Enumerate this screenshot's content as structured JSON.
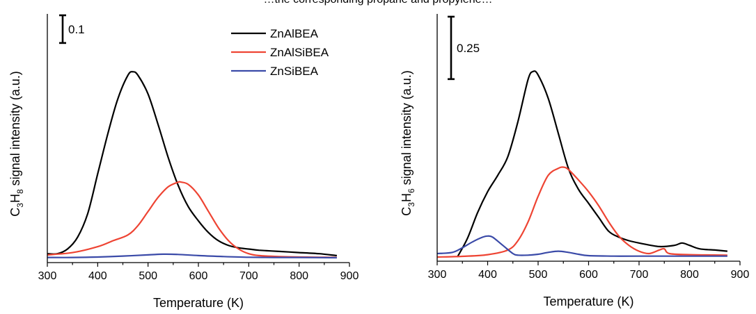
{
  "top_caption_fragment": "…the corresponding propane and propylene…",
  "legend": [
    {
      "label": "ZnAlBEA",
      "color": "#000000"
    },
    {
      "label": "ZnAlSiBEA",
      "color": "#ee4433"
    },
    {
      "label": "ZnSiBEA",
      "color": "#3a4aa8"
    }
  ],
  "chart_data": [
    {
      "type": "line",
      "xlabel": "Temperature (K)",
      "ylabel_parts": [
        "C",
        "3",
        "H",
        "8",
        " signal intensity (a.u.)"
      ],
      "xlim": [
        300,
        900
      ],
      "xticks": [
        "300",
        "400",
        "500",
        "600",
        "700",
        "800",
        "900"
      ],
      "ylim": [
        0,
        1.0
      ],
      "scale_bar": {
        "label": "0.1",
        "value": 0.1
      },
      "series": [
        {
          "name": "ZnAlBEA",
          "color": "#000000",
          "x": [
            300,
            320,
            340,
            360,
            380,
            400,
            420,
            440,
            460,
            470,
            480,
            500,
            520,
            540,
            560,
            580,
            600,
            620,
            640,
            660,
            680,
            700,
            720,
            760,
            800,
            840,
            875
          ],
          "y": [
            0.02,
            0.02,
            0.04,
            0.09,
            0.19,
            0.36,
            0.53,
            0.68,
            0.78,
            0.795,
            0.78,
            0.7,
            0.57,
            0.43,
            0.31,
            0.22,
            0.16,
            0.11,
            0.075,
            0.055,
            0.045,
            0.04,
            0.035,
            0.03,
            0.025,
            0.02,
            0.012
          ]
        },
        {
          "name": "ZnAlSiBEA",
          "color": "#ee4433",
          "x": [
            300,
            350,
            400,
            430,
            460,
            480,
            500,
            520,
            540,
            560,
            565,
            580,
            600,
            620,
            640,
            660,
            680,
            700,
            720,
            760,
            800,
            840,
            875
          ],
          "y": [
            0.015,
            0.025,
            0.05,
            0.075,
            0.1,
            0.14,
            0.2,
            0.26,
            0.305,
            0.325,
            0.325,
            0.315,
            0.27,
            0.2,
            0.13,
            0.075,
            0.04,
            0.02,
            0.012,
            0.008,
            0.006,
            0.005,
            0.004
          ]
        },
        {
          "name": "ZnSiBEA",
          "color": "#3a4aa8",
          "x": [
            300,
            350,
            400,
            450,
            500,
            530,
            560,
            600,
            650,
            700,
            750,
            800,
            875
          ],
          "y": [
            0.004,
            0.004,
            0.006,
            0.01,
            0.015,
            0.018,
            0.017,
            0.012,
            0.008,
            0.005,
            0.004,
            0.004,
            0.003
          ]
        }
      ]
    },
    {
      "type": "line",
      "xlabel": "Temperature (K)",
      "ylabel_parts": [
        "C",
        "3",
        "H",
        "6",
        " signal intensity (a.u.)"
      ],
      "xlim": [
        300,
        900
      ],
      "xticks": [
        "300",
        "400",
        "500",
        "600",
        "700",
        "800",
        "900"
      ],
      "ylim": [
        0,
        1.0
      ],
      "scale_bar": {
        "label": "0.25",
        "value": 0.25
      },
      "series": [
        {
          "name": "ZnAlBEA",
          "color": "#000000",
          "x": [
            340,
            360,
            380,
            400,
            420,
            440,
            460,
            480,
            490,
            500,
            520,
            540,
            560,
            580,
            600,
            620,
            640,
            660,
            680,
            700,
            740,
            770,
            785,
            800,
            820,
            850,
            875
          ],
          "y": [
            0.0,
            0.08,
            0.19,
            0.28,
            0.35,
            0.43,
            0.58,
            0.76,
            0.795,
            0.78,
            0.68,
            0.53,
            0.38,
            0.29,
            0.23,
            0.17,
            0.11,
            0.085,
            0.07,
            0.06,
            0.045,
            0.05,
            0.06,
            0.05,
            0.035,
            0.03,
            0.025
          ]
        },
        {
          "name": "ZnAlSiBEA",
          "color": "#ee4433",
          "x": [
            300,
            350,
            400,
            440,
            460,
            480,
            500,
            520,
            540,
            550,
            560,
            580,
            600,
            620,
            640,
            660,
            680,
            700,
            720,
            740,
            750,
            760,
            800,
            875
          ],
          "y": [
            0.0,
            0.003,
            0.01,
            0.03,
            0.07,
            0.15,
            0.26,
            0.35,
            0.38,
            0.385,
            0.375,
            0.33,
            0.28,
            0.22,
            0.15,
            0.09,
            0.05,
            0.025,
            0.015,
            0.03,
            0.035,
            0.015,
            0.01,
            0.008
          ]
        },
        {
          "name": "ZnSiBEA",
          "color": "#3a4aa8",
          "x": [
            300,
            330,
            350,
            370,
            390,
            400,
            410,
            430,
            450,
            460,
            480,
            500,
            520,
            540,
            560,
            580,
            600,
            650,
            700,
            800,
            875
          ],
          "y": [
            0.015,
            0.02,
            0.04,
            0.065,
            0.085,
            0.09,
            0.085,
            0.05,
            0.015,
            0.008,
            0.008,
            0.012,
            0.02,
            0.025,
            0.02,
            0.012,
            0.006,
            0.004,
            0.004,
            0.004,
            0.004
          ]
        }
      ]
    }
  ]
}
